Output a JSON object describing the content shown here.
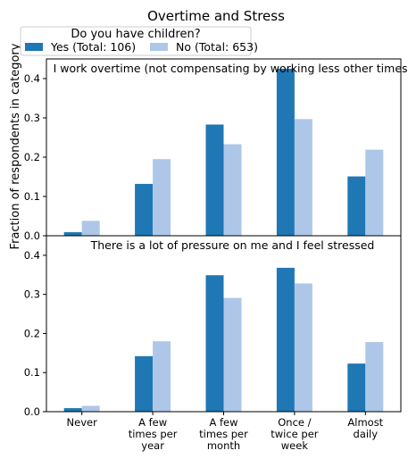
{
  "chart_data": {
    "type": "bar",
    "title": "Overtime and Stress",
    "ylabel": "Fraction of respondents in category",
    "categories": [
      "Never",
      "A few times per year",
      "A few times per month",
      "Once / twice per week",
      "Almost daily"
    ],
    "category_lines": [
      [
        "Never"
      ],
      [
        "A few",
        "times per",
        "year"
      ],
      [
        "A few",
        "times per",
        "month"
      ],
      [
        "Once /",
        "twice per",
        "week"
      ],
      [
        "Almost",
        "daily"
      ]
    ],
    "legend": {
      "title": "Do you have children?",
      "placement": "top-left",
      "entries": [
        {
          "label": "Yes (Total: 106)",
          "color": "#1f77b4"
        },
        {
          "label": "No (Total: 653)",
          "color": "#aec7e8"
        }
      ]
    },
    "panels": [
      {
        "title": "I work overtime (not compensating by working less other times)",
        "ylim": [
          0,
          0.45
        ],
        "yticks": [
          "0.0",
          "0.1",
          "0.2",
          "0.3",
          "0.4"
        ],
        "series": [
          {
            "name": "Yes (Total: 106)",
            "color": "#1f77b4",
            "values": [
              0.009,
              0.132,
              0.283,
              0.425,
              0.151
            ]
          },
          {
            "name": "No (Total: 653)",
            "color": "#aec7e8",
            "values": [
              0.038,
              0.195,
              0.233,
              0.297,
              0.219
            ]
          }
        ]
      },
      {
        "title": "There is a lot of pressure on me and I feel stressed",
        "ylim": [
          0,
          0.45
        ],
        "yticks": [
          "0.0",
          "0.1",
          "0.2",
          "0.3",
          "0.4"
        ],
        "series": [
          {
            "name": "Yes (Total: 106)",
            "color": "#1f77b4",
            "values": [
              0.009,
              0.142,
              0.349,
              0.368,
              0.123
            ]
          },
          {
            "name": "No (Total: 653)",
            "color": "#aec7e8",
            "values": [
              0.015,
              0.18,
              0.291,
              0.328,
              0.178
            ]
          }
        ]
      }
    ],
    "grid": false
  }
}
